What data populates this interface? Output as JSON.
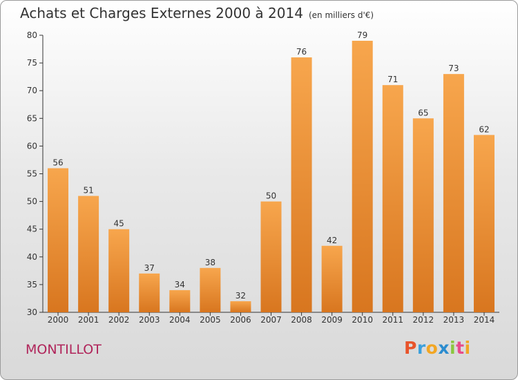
{
  "header": {
    "title": "Achats et Charges Externes 2000 à 2014",
    "subtitle": "(en milliers d'€)"
  },
  "footer": {
    "place": "MONTILLOT",
    "logo_letters": [
      "P",
      "r",
      "o",
      "x",
      "i",
      "t",
      "i"
    ],
    "logo_colors": [
      "#e8542b",
      "#3ca0dc",
      "#f2a623",
      "#2b8ccf",
      "#8cc63f",
      "#e84b8a",
      "#f2a623"
    ]
  },
  "chart_data": {
    "type": "bar",
    "categories": [
      "2000",
      "2001",
      "2002",
      "2003",
      "2004",
      "2005",
      "2006",
      "2007",
      "2008",
      "2009",
      "2010",
      "2011",
      "2012",
      "2013",
      "2014"
    ],
    "values": [
      56,
      51,
      45,
      37,
      34,
      38,
      32,
      50,
      76,
      42,
      79,
      71,
      65,
      73,
      62
    ],
    "title": "Achats et Charges Externes 2000 à 2014",
    "subtitle": "(en milliers d'€)",
    "ylim": [
      30,
      80
    ],
    "yticks": [
      30,
      35,
      40,
      45,
      50,
      55,
      60,
      65,
      70,
      75,
      80
    ],
    "grid": false,
    "bar_color": "#f0a04a"
  }
}
